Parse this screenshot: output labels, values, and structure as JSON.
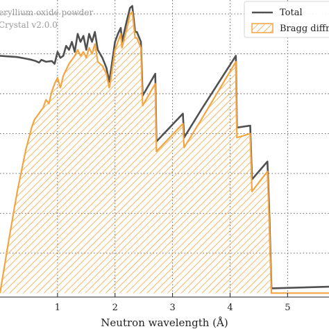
{
  "chart_data": {
    "type": "area",
    "title": "",
    "xlabel": "Neutron wavelength (Å)",
    "ylabel": "",
    "xlim": [
      0,
      5.72
    ],
    "ylim": [
      -0.1,
      7.35
    ],
    "grid": true,
    "x_ticks": [
      1,
      2,
      3,
      4,
      5
    ],
    "x_tick_labels": [
      "1",
      "2",
      "3",
      "4",
      "5"
    ],
    "y_grid_values": [
      1.0,
      2.0,
      3.0,
      4.0,
      5.0,
      6.0,
      7.0
    ],
    "annotations": [
      "eryllium oxide powder",
      "Crystal v2.0.0"
    ],
    "legend": {
      "placement": "top-right"
    },
    "series": [
      {
        "name": "Total",
        "color": "#505050",
        "style": "line",
        "x": [
          0,
          0.3,
          0.45,
          0.55,
          0.62,
          0.68,
          0.72,
          0.8,
          0.9,
          0.95,
          1.0,
          1.05,
          1.1,
          1.15,
          1.2,
          1.25,
          1.3,
          1.35,
          1.4,
          1.45,
          1.5,
          1.55,
          1.6,
          1.65,
          1.7,
          1.78,
          1.85,
          1.9,
          1.92,
          2.0,
          2.05,
          2.1,
          2.12,
          2.2,
          2.26,
          2.3,
          2.35,
          2.38,
          2.45,
          2.48,
          2.7,
          2.72,
          3.18,
          3.2,
          3.5,
          4.1,
          4.12,
          4.35,
          4.38,
          4.65,
          4.68,
          4.72,
          5.72
        ],
        "y": [
          5.95,
          5.92,
          5.88,
          5.85,
          5.82,
          5.78,
          5.85,
          5.8,
          5.82,
          5.75,
          6.05,
          5.9,
          5.95,
          6.2,
          6.1,
          6.3,
          6.05,
          6.5,
          6.3,
          6.45,
          6.1,
          6.5,
          6.3,
          6.55,
          6.1,
          5.9,
          5.65,
          5.3,
          5.5,
          6.3,
          6.5,
          6.65,
          6.3,
          6.8,
          7.15,
          7.2,
          6.55,
          6.55,
          6.3,
          4.95,
          5.5,
          3.8,
          4.5,
          3.9,
          4.6,
          5.95,
          4.15,
          4.2,
          2.85,
          3.3,
          2.1,
          0.12,
          0.16
        ]
      },
      {
        "name": "Bragg diffr",
        "color": "#f2a541",
        "style": "hatched-area",
        "x": [
          0,
          0.15,
          0.3,
          0.45,
          0.55,
          0.6,
          0.65,
          0.7,
          0.75,
          0.8,
          0.85,
          0.9,
          0.95,
          1.0,
          1.05,
          1.1,
          1.15,
          1.2,
          1.25,
          1.3,
          1.35,
          1.4,
          1.45,
          1.5,
          1.55,
          1.6,
          1.65,
          1.7,
          1.78,
          1.85,
          1.9,
          1.92,
          2.0,
          2.05,
          2.1,
          2.12,
          2.2,
          2.26,
          2.3,
          2.35,
          2.38,
          2.45,
          2.48,
          2.7,
          2.72,
          3.18,
          3.2,
          3.5,
          4.1,
          4.12,
          4.35,
          4.38,
          4.65,
          4.68,
          4.72,
          5.72
        ],
        "y": [
          0,
          1.3,
          2.55,
          3.6,
          4.15,
          4.35,
          4.45,
          4.55,
          4.65,
          4.85,
          4.75,
          5.05,
          5.25,
          5.4,
          5.15,
          5.45,
          5.6,
          5.75,
          5.85,
          5.95,
          6.1,
          5.95,
          6.05,
          5.9,
          6.15,
          6.0,
          6.25,
          5.8,
          5.7,
          5.5,
          5.15,
          5.3,
          6.1,
          6.3,
          6.5,
          6.15,
          6.6,
          7.0,
          7.05,
          6.4,
          6.4,
          6.15,
          4.7,
          5.25,
          3.55,
          4.25,
          3.65,
          4.35,
          5.8,
          3.9,
          4.0,
          2.55,
          3.05,
          1.85,
          0,
          0
        ]
      }
    ]
  }
}
